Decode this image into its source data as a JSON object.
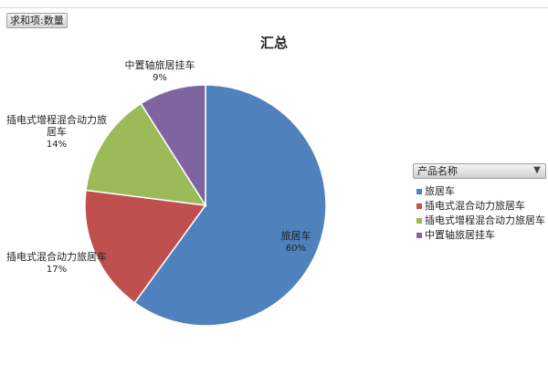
{
  "field_button": {
    "label": "求和项:数量"
  },
  "legend": {
    "header": "产品名称",
    "filter_icon": "filter-funnel-icon"
  },
  "chart_data": {
    "type": "pie",
    "title": "汇总",
    "start_angle_deg": 0,
    "direction": "clockwise",
    "slices": [
      {
        "label": "旅居车",
        "data_label": "旅居车",
        "value": 60,
        "percent_label": "60%",
        "color": "#4f81bd"
      },
      {
        "label": "插电式混合动力旅居车",
        "data_label": "插电式混合动力旅居车",
        "value": 17,
        "percent_label": "17%",
        "color": "#c0504d"
      },
      {
        "label": "插电式增程混合动力旅居车",
        "data_label": "插电式增程混合动力旅居车",
        "value": 14,
        "percent_label": "14%",
        "color": "#9bbb59"
      },
      {
        "label": "中置轴旅居挂车",
        "data_label": "中置轴旅居挂车",
        "value": 9,
        "percent_label": "9%",
        "color": "#8064a2"
      }
    ],
    "legend_position": "right"
  }
}
